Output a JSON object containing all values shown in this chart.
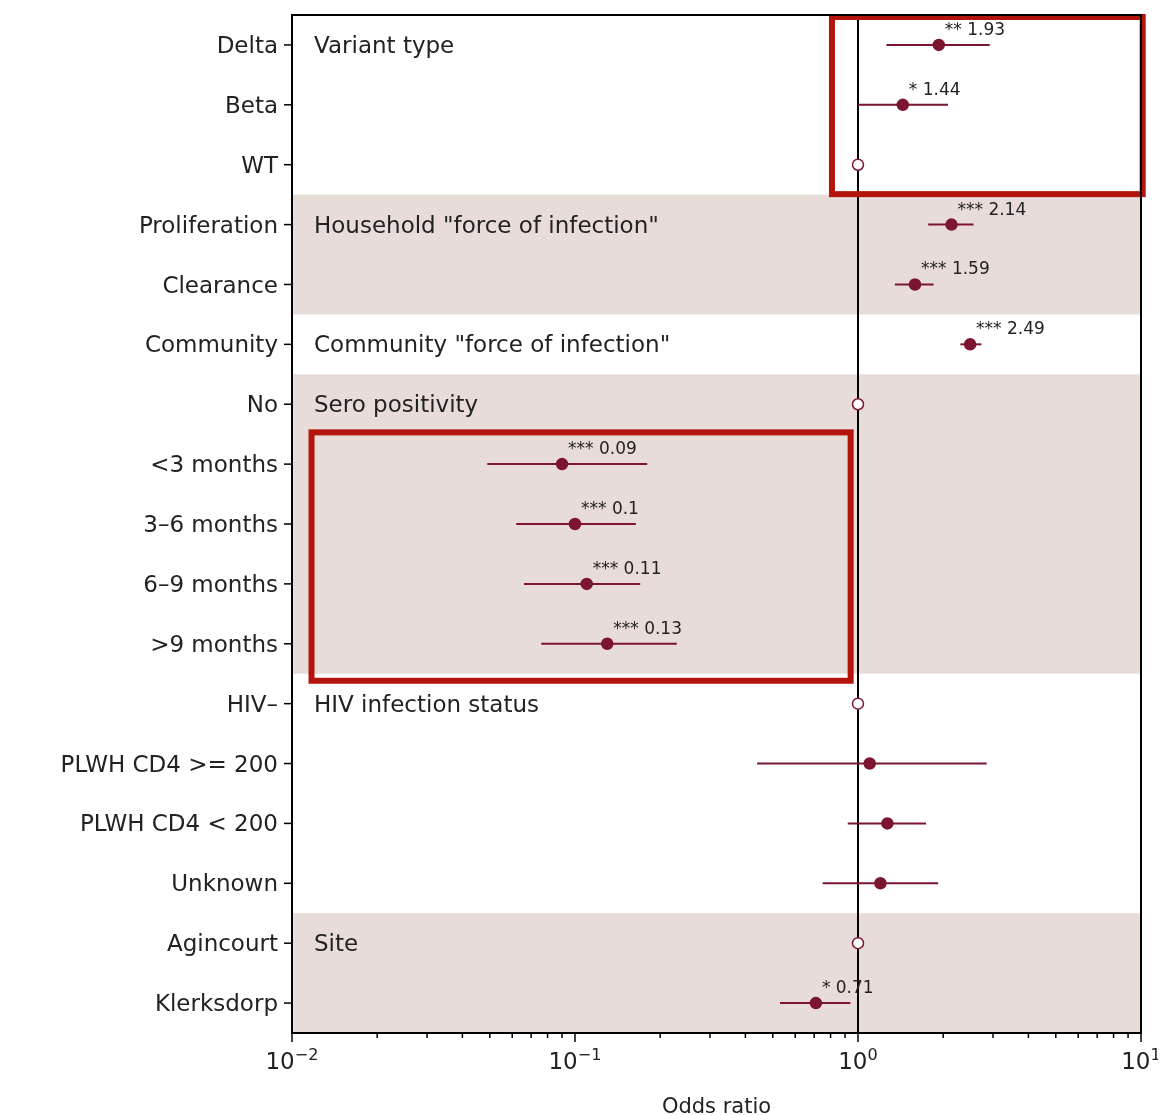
{
  "chart_data": {
    "type": "scatter",
    "orientation": "horizontal",
    "xlabel": "Odds ratio",
    "log": "x",
    "grid": false,
    "marker": "circle",
    "categories": [
      "Delta",
      "Beta",
      "WT",
      "Proliferation",
      "Clearance",
      "Community",
      "No",
      "<3 months",
      "3–6 months",
      "6–9 months",
      ">9 months",
      "HIV–",
      "PLWH CD4 >= 200",
      "PLWH CD4 < 200",
      "Unknown",
      "Agincourt",
      "Klerksdorp"
    ],
    "xlim": [
      0.01,
      10
    ],
    "xticks": [
      {
        "value": 0.01,
        "label": "10$^{−2}$"
      },
      {
        "value": 0.02,
        "label": null
      },
      {
        "value": 0.03,
        "label": null
      },
      {
        "value": 0.04,
        "label": null
      },
      {
        "value": 0.05,
        "label": null
      },
      {
        "value": 0.06,
        "label": null
      },
      {
        "value": 0.07,
        "label": null
      },
      {
        "value": 0.08,
        "label": null
      },
      {
        "value": 0.09,
        "label": null
      },
      {
        "value": 0.1,
        "label": "10$^{−1}$"
      },
      {
        "value": 0.2,
        "label": null
      },
      {
        "value": 0.3,
        "label": null
      },
      {
        "value": 0.4,
        "label": null
      },
      {
        "value": 0.5,
        "label": null
      },
      {
        "value": 0.6,
        "label": null
      },
      {
        "value": 0.7,
        "label": null
      },
      {
        "value": 0.8,
        "label": null
      },
      {
        "value": 0.9,
        "label": null
      },
      {
        "value": 1,
        "label": "10$^{0}$"
      },
      {
        "value": 2,
        "label": null
      },
      {
        "value": 3,
        "label": null
      },
      {
        "value": 4,
        "label": null
      },
      {
        "value": 5,
        "label": null
      },
      {
        "value": 6,
        "label": null
      },
      {
        "value": 7,
        "label": null
      },
      {
        "value": 8,
        "label": null
      },
      {
        "value": 9,
        "label": null
      },
      {
        "value": 10,
        "label": "10$^{1}$"
      }
    ],
    "series": [
      {
        "color": "#7b1530",
        "values": [
          1.93,
          1.44,
          null,
          2.14,
          1.59,
          2.49,
          null,
          0.09,
          0.1,
          0.11,
          0.13,
          null,
          1.1,
          1.27,
          1.2,
          null,
          0.71
        ],
        "errors": [
          [
            1.26,
            2.92
          ],
          [
            1.0,
            2.08
          ],
          null,
          [
            1.77,
            2.56
          ],
          [
            1.35,
            1.85
          ],
          [
            2.3,
            2.73
          ],
          null,
          [
            0.049,
            0.18
          ],
          [
            0.062,
            0.164
          ],
          [
            0.066,
            0.17
          ],
          [
            0.076,
            0.229
          ],
          null,
          [
            0.44,
            2.85
          ],
          [
            0.92,
            1.74
          ],
          [
            0.75,
            1.92
          ],
          null,
          [
            0.53,
            0.94
          ]
        ],
        "value_labels": [
          "** 1.93",
          "* 1.44",
          null,
          "*** 2.14",
          "*** 1.59",
          "*** 2.49",
          null,
          "*** 0.09",
          "*** 0.1",
          "*** 0.11",
          "*** 0.13",
          null,
          null,
          null,
          null,
          null,
          "* 0.71"
        ]
      },
      {
        "color": "#ffffff",
        "values": [
          null,
          null,
          1,
          null,
          null,
          null,
          1,
          null,
          null,
          null,
          null,
          1,
          null,
          null,
          null,
          1,
          null
        ]
      }
    ],
    "ref_lines": [
      {
        "axis": "x",
        "value": 1,
        "color": "#000000"
      }
    ],
    "bands": [
      {
        "axis": "y",
        "from": "Proliferation",
        "to": "Clearance",
        "color": "#e8dcd9"
      },
      {
        "axis": "y",
        "from": "No",
        "to": ">9 months",
        "color": "#e8dcd9"
      },
      {
        "axis": "y",
        "from": "Agincourt",
        "to": "Klerksdorp",
        "color": "#e8dcd9"
      }
    ],
    "annotations": [
      "Variant type",
      "Household \"force of infection\"",
      "Community \"force of infection\"",
      "Sero positivity",
      "HIV infection status",
      "Site"
    ]
  }
}
